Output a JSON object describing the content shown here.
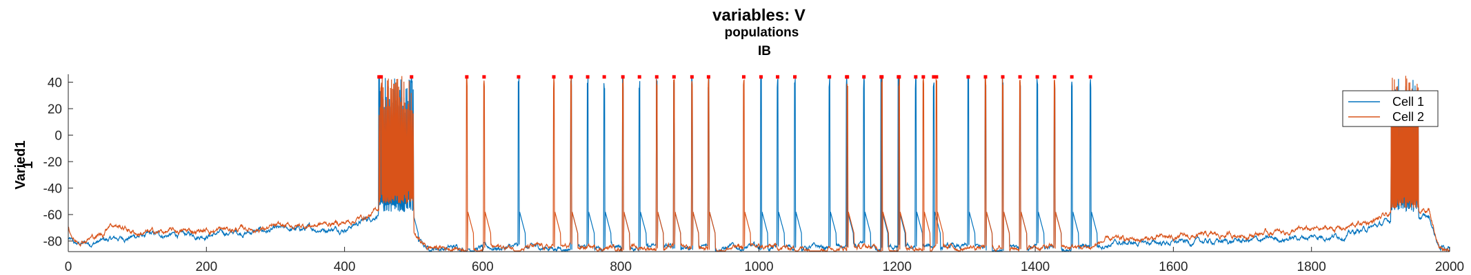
{
  "chart_data": {
    "type": "line",
    "title": "variables: V",
    "subtitle_lines": [
      "populations",
      "IB"
    ],
    "ylabel_lines": [
      "Varied1",
      "1"
    ],
    "xlabel": "",
    "xlim": [
      0,
      2000
    ],
    "ylim": [
      -88,
      46
    ],
    "xticks": [
      0,
      200,
      400,
      600,
      800,
      1000,
      1200,
      1400,
      1600,
      1800,
      2000
    ],
    "yticks": [
      -80,
      -60,
      -40,
      -20,
      0,
      20,
      40
    ],
    "grid": false,
    "legend_position": "top-right",
    "spike_marker_level": 44,
    "spike_marker_color": "#ff0000",
    "series": [
      {
        "name": "Cell 1",
        "color": "#0072bd",
        "baseline": [
          [
            0,
            -78
          ],
          [
            10,
            -83
          ],
          [
            50,
            -80
          ],
          [
            100,
            -76
          ],
          [
            200,
            -75
          ],
          [
            300,
            -72
          ],
          [
            400,
            -70
          ],
          [
            440,
            -62
          ],
          [
            450,
            -58
          ],
          [
            520,
            -85
          ],
          [
            1480,
            -85
          ],
          [
            1500,
            -82
          ],
          [
            1700,
            -80
          ],
          [
            1850,
            -75
          ],
          [
            1900,
            -68
          ],
          [
            1930,
            -60
          ],
          [
            1970,
            -62
          ],
          [
            1985,
            -85
          ],
          [
            2000,
            -85
          ]
        ],
        "burst": [
          450,
          500
        ],
        "late_burst": [
          1915,
          1955
        ],
        "spikes": [
          450,
          497,
          652,
          728,
          752,
          776,
          803,
          827,
          852,
          877,
          903,
          927,
          1003,
          1027,
          1052,
          1102,
          1127,
          1152,
          1177,
          1202,
          1227,
          1253,
          1303,
          1328,
          1353,
          1378,
          1403,
          1428,
          1453,
          1480
        ]
      },
      {
        "name": "Cell 2",
        "color": "#d95319",
        "baseline": [
          [
            0,
            -70
          ],
          [
            10,
            -80
          ],
          [
            50,
            -75
          ],
          [
            60,
            -66
          ],
          [
            100,
            -74
          ],
          [
            200,
            -72
          ],
          [
            300,
            -70
          ],
          [
            400,
            -66
          ],
          [
            440,
            -60
          ],
          [
            450,
            -55
          ],
          [
            520,
            -85
          ],
          [
            1480,
            -85
          ],
          [
            1500,
            -80
          ],
          [
            1700,
            -75
          ],
          [
            1850,
            -70
          ],
          [
            1900,
            -63
          ],
          [
            1930,
            -58
          ],
          [
            1970,
            -56
          ],
          [
            1985,
            -85
          ],
          [
            2000,
            -85
          ]
        ],
        "burst": [
          450,
          500
        ],
        "late_burst": [
          1915,
          1955
        ],
        "spikes": [
          453,
          577,
          602,
          703,
          728,
          803,
          852,
          877,
          903,
          927,
          978,
          1128,
          1178,
          1203,
          1238,
          1257,
          1328,
          1353,
          1378,
          1428
        ]
      }
    ]
  }
}
